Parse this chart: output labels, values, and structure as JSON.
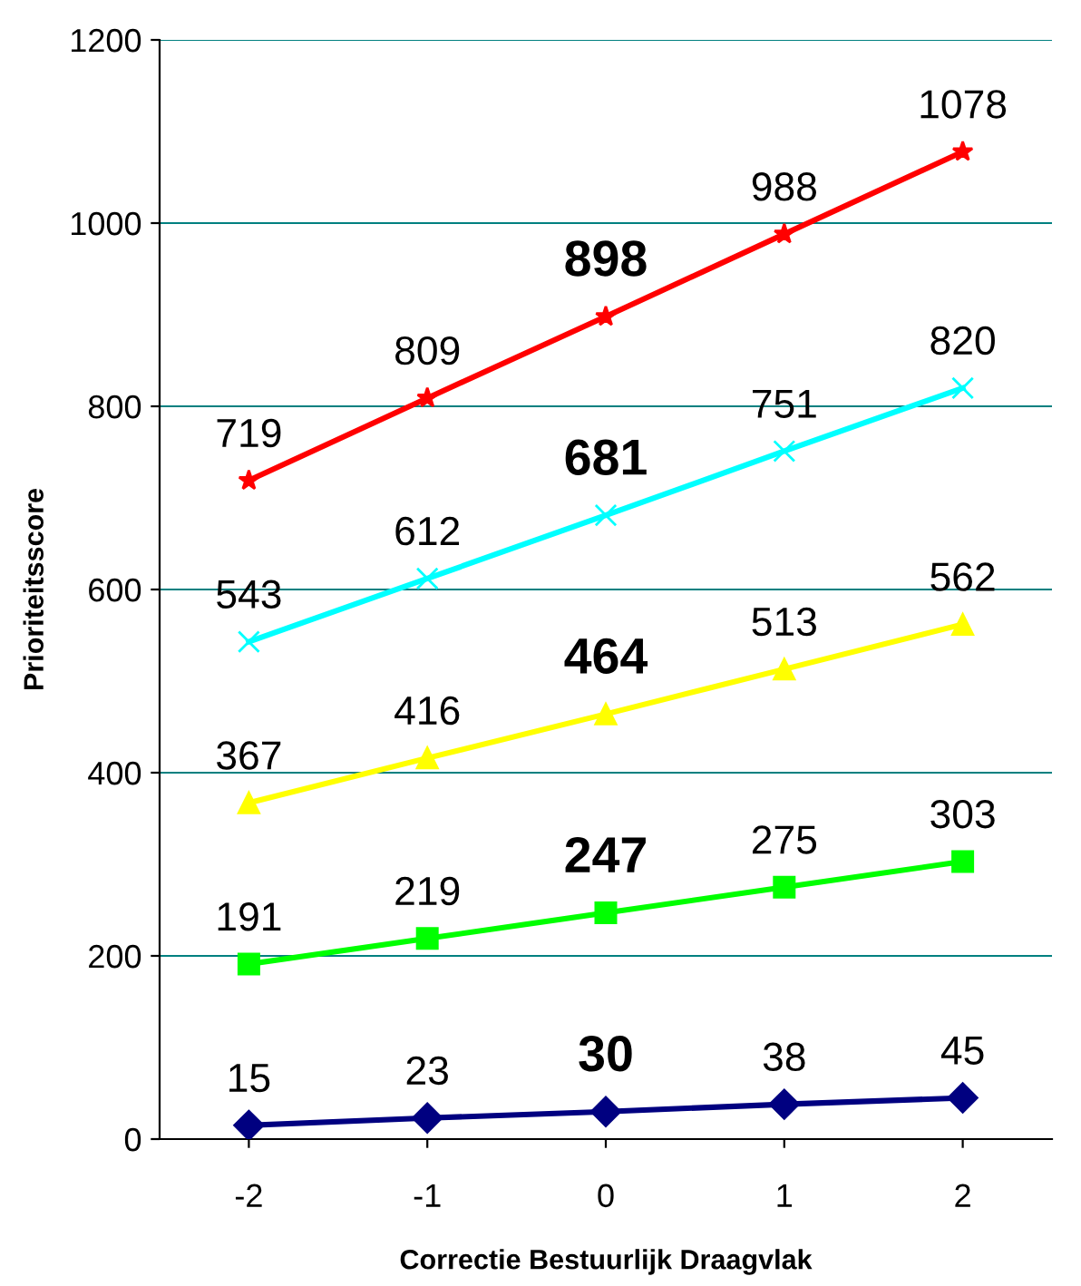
{
  "chart_data": {
    "type": "line",
    "xlabel": "Correctie Bestuurlijk Draagvlak",
    "ylabel": "Prioriteitsscore",
    "categories": [
      "-2",
      "-1",
      "0",
      "1",
      "2"
    ],
    "series": [
      {
        "color": "#ff0000",
        "marker": "star",
        "values": [
          719,
          809,
          898,
          988,
          1078
        ]
      },
      {
        "color": "#00ffff",
        "marker": "cross",
        "values": [
          543,
          612,
          681,
          751,
          820
        ]
      },
      {
        "color": "#ffff00",
        "marker": "triangle",
        "values": [
          367,
          416,
          464,
          513,
          562
        ]
      },
      {
        "color": "#00ff00",
        "marker": "square",
        "values": [
          191,
          219,
          247,
          275,
          303
        ]
      },
      {
        "color": "#000080",
        "marker": "diamond",
        "values": [
          15,
          23,
          30,
          38,
          45
        ]
      }
    ],
    "ylim": [
      0,
      1200
    ],
    "yticks": [
      0,
      200,
      400,
      600,
      800,
      1000,
      1200
    ],
    "grid": "y",
    "data_labels": true,
    "line_style": "solid"
  }
}
